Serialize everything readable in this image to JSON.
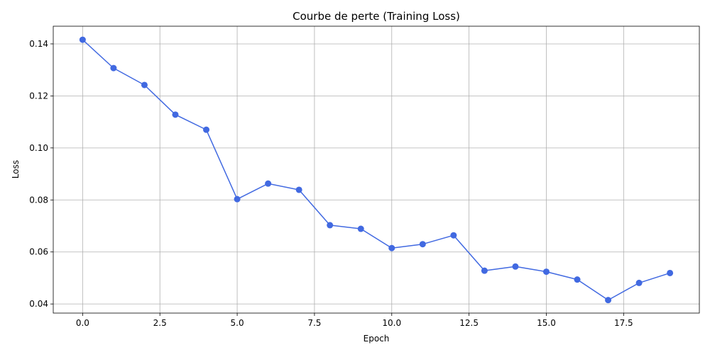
{
  "chart_data": {
    "type": "line",
    "title": "Courbe de perte (Training Loss)",
    "xlabel": "Epoch",
    "ylabel": "Loss",
    "xlim": [
      -0.95,
      19.95
    ],
    "ylim": [
      0.0365,
      0.1468
    ],
    "grid": true,
    "line_color": "#4169e1",
    "x_ticks": [
      0.0,
      2.5,
      5.0,
      7.5,
      10.0,
      12.5,
      15.0,
      17.5
    ],
    "x_tick_labels": [
      "0.0",
      "2.5",
      "5.0",
      "7.5",
      "10.0",
      "12.5",
      "15.0",
      "17.5"
    ],
    "y_ticks": [
      0.04,
      0.06,
      0.08,
      0.1,
      0.12,
      0.14
    ],
    "y_tick_labels": [
      "0.04",
      "0.06",
      "0.08",
      "0.10",
      "0.12",
      "0.14"
    ],
    "x": [
      0,
      1,
      2,
      3,
      4,
      5,
      6,
      7,
      8,
      9,
      10,
      11,
      12,
      13,
      14,
      15,
      16,
      17,
      18,
      19
    ],
    "series": [
      {
        "values": [
          0.1416,
          0.1307,
          0.1242,
          0.1128,
          0.107,
          0.0803,
          0.0863,
          0.0839,
          0.0703,
          0.0689,
          0.0615,
          0.063,
          0.0664,
          0.0528,
          0.0544,
          0.0524,
          0.0494,
          0.0415,
          0.0481,
          0.0519
        ]
      }
    ]
  }
}
